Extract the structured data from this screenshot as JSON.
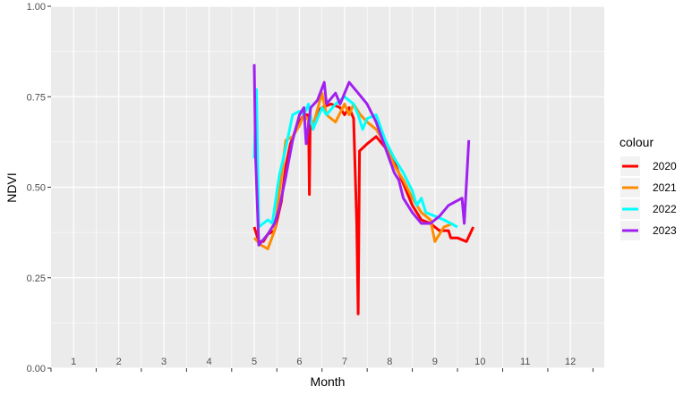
{
  "chart_data": {
    "type": "line",
    "title": "",
    "xlabel": "Month",
    "ylabel": "NDVI",
    "xlim": [
      0.5,
      12.75
    ],
    "ylim": [
      0,
      1
    ],
    "x_ticks": [
      1,
      2,
      3,
      4,
      5,
      6,
      7,
      8,
      9,
      10,
      11,
      12
    ],
    "x_tick_labels": [
      "1",
      "2",
      "3",
      "4",
      "5",
      "6",
      "7",
      "8",
      "9",
      "10",
      "11",
      "12"
    ],
    "y_ticks": [
      0,
      0.25,
      0.5,
      0.75,
      1
    ],
    "y_tick_labels": [
      "0.00",
      "0.25",
      "0.50",
      "0.75",
      "1.00"
    ],
    "grid": true,
    "legend_title": "colour",
    "legend_position": "right",
    "series": [
      {
        "name": "2020",
        "color": "#ff0000",
        "points": [
          [
            5.0,
            0.39
          ],
          [
            5.1,
            0.35
          ],
          [
            5.2,
            0.35
          ],
          [
            5.3,
            0.37
          ],
          [
            5.45,
            0.38
          ],
          [
            5.6,
            0.46
          ],
          [
            5.7,
            0.56
          ],
          [
            5.8,
            0.62
          ],
          [
            5.95,
            0.67
          ],
          [
            6.1,
            0.7
          ],
          [
            6.2,
            0.7
          ],
          [
            6.22,
            0.48
          ],
          [
            6.24,
            0.7
          ],
          [
            6.3,
            0.66
          ],
          [
            6.4,
            0.71
          ],
          [
            6.5,
            0.72
          ],
          [
            6.7,
            0.73
          ],
          [
            6.9,
            0.72
          ],
          [
            7.0,
            0.7
          ],
          [
            7.1,
            0.72
          ],
          [
            7.2,
            0.69
          ],
          [
            7.27,
            0.4
          ],
          [
            7.3,
            0.15
          ],
          [
            7.33,
            0.6
          ],
          [
            7.5,
            0.62
          ],
          [
            7.7,
            0.64
          ],
          [
            7.9,
            0.61
          ],
          [
            8.1,
            0.57
          ],
          [
            8.3,
            0.51
          ],
          [
            8.5,
            0.45
          ],
          [
            8.7,
            0.41
          ],
          [
            8.9,
            0.4
          ],
          [
            9.1,
            0.38
          ],
          [
            9.3,
            0.38
          ],
          [
            9.35,
            0.36
          ],
          [
            9.5,
            0.36
          ],
          [
            9.7,
            0.35
          ],
          [
            9.85,
            0.39
          ]
        ]
      },
      {
        "name": "2021",
        "color": "#ff8c00",
        "points": [
          [
            5.0,
            0.36
          ],
          [
            5.15,
            0.34
          ],
          [
            5.3,
            0.33
          ],
          [
            5.45,
            0.38
          ],
          [
            5.55,
            0.48
          ],
          [
            5.7,
            0.63
          ],
          [
            5.85,
            0.64
          ],
          [
            6.0,
            0.67
          ],
          [
            6.1,
            0.7
          ],
          [
            6.3,
            0.67
          ],
          [
            6.5,
            0.76
          ],
          [
            6.6,
            0.7
          ],
          [
            6.8,
            0.68
          ],
          [
            7.0,
            0.73
          ],
          [
            7.1,
            0.7
          ],
          [
            7.2,
            0.73
          ],
          [
            7.35,
            0.7
          ],
          [
            7.5,
            0.68
          ],
          [
            7.7,
            0.66
          ],
          [
            7.9,
            0.62
          ],
          [
            8.1,
            0.56
          ],
          [
            8.3,
            0.52
          ],
          [
            8.5,
            0.47
          ],
          [
            8.7,
            0.43
          ],
          [
            8.9,
            0.41
          ],
          [
            9.0,
            0.35
          ],
          [
            9.2,
            0.39
          ],
          [
            9.4,
            0.4
          ]
        ]
      },
      {
        "name": "2022",
        "color": "#00ffff",
        "points": [
          [
            5.0,
            0.58
          ],
          [
            5.05,
            0.77
          ],
          [
            5.1,
            0.39
          ],
          [
            5.2,
            0.4
          ],
          [
            5.3,
            0.41
          ],
          [
            5.4,
            0.4
          ],
          [
            5.55,
            0.53
          ],
          [
            5.7,
            0.61
          ],
          [
            5.85,
            0.7
          ],
          [
            6.0,
            0.71
          ],
          [
            6.1,
            0.7
          ],
          [
            6.2,
            0.73
          ],
          [
            6.3,
            0.66
          ],
          [
            6.5,
            0.72
          ],
          [
            6.6,
            0.7
          ],
          [
            6.8,
            0.73
          ],
          [
            7.0,
            0.75
          ],
          [
            7.2,
            0.73
          ],
          [
            7.3,
            0.7
          ],
          [
            7.4,
            0.66
          ],
          [
            7.5,
            0.69
          ],
          [
            7.7,
            0.7
          ],
          [
            7.9,
            0.63
          ],
          [
            8.1,
            0.58
          ],
          [
            8.3,
            0.54
          ],
          [
            8.5,
            0.49
          ],
          [
            8.6,
            0.45
          ],
          [
            8.7,
            0.47
          ],
          [
            8.8,
            0.43
          ],
          [
            9.0,
            0.42
          ],
          [
            9.2,
            0.41
          ],
          [
            9.5,
            0.39
          ]
        ]
      },
      {
        "name": "2023",
        "color": "#a020f0",
        "points": [
          [
            5.0,
            0.84
          ],
          [
            5.03,
            0.58
          ],
          [
            5.1,
            0.34
          ],
          [
            5.3,
            0.37
          ],
          [
            5.45,
            0.4
          ],
          [
            5.55,
            0.44
          ],
          [
            5.7,
            0.53
          ],
          [
            5.85,
            0.63
          ],
          [
            6.0,
            0.7
          ],
          [
            6.1,
            0.72
          ],
          [
            6.15,
            0.62
          ],
          [
            6.25,
            0.72
          ],
          [
            6.4,
            0.74
          ],
          [
            6.55,
            0.79
          ],
          [
            6.6,
            0.73
          ],
          [
            6.8,
            0.76
          ],
          [
            6.9,
            0.73
          ],
          [
            7.1,
            0.79
          ],
          [
            7.3,
            0.76
          ],
          [
            7.5,
            0.73
          ],
          [
            7.7,
            0.68
          ],
          [
            7.9,
            0.61
          ],
          [
            8.1,
            0.54
          ],
          [
            8.2,
            0.52
          ],
          [
            8.3,
            0.47
          ],
          [
            8.5,
            0.43
          ],
          [
            8.7,
            0.4
          ],
          [
            8.9,
            0.4
          ],
          [
            9.1,
            0.42
          ],
          [
            9.3,
            0.45
          ],
          [
            9.6,
            0.47
          ],
          [
            9.65,
            0.4
          ],
          [
            9.75,
            0.63
          ]
        ]
      }
    ]
  }
}
